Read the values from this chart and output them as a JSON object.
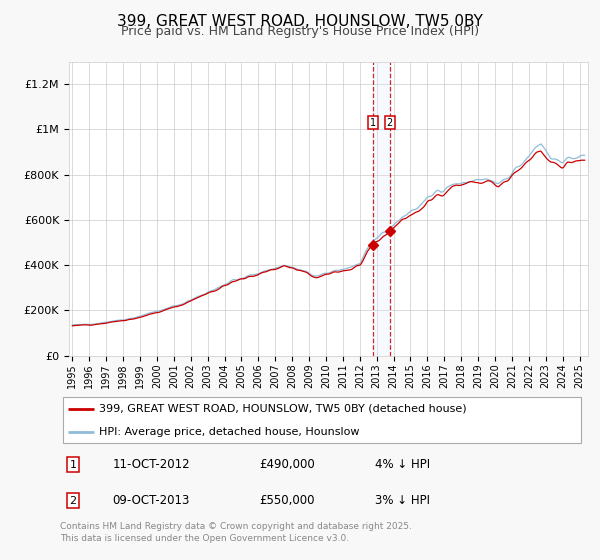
{
  "title": "399, GREAT WEST ROAD, HOUNSLOW, TW5 0BY",
  "subtitle": "Price paid vs. HM Land Registry's House Price Index (HPI)",
  "ylabel_ticks": [
    "£0",
    "£200K",
    "£400K",
    "£600K",
    "£800K",
    "£1M",
    "£1.2M"
  ],
  "ytick_values": [
    0,
    200000,
    400000,
    600000,
    800000,
    1000000,
    1200000
  ],
  "ylim": [
    0,
    1300000
  ],
  "xlim_start": 1994.8,
  "xlim_end": 2025.5,
  "purchase1_date": 2012.78,
  "purchase1_price": 490000,
  "purchase2_date": 2013.77,
  "purchase2_price": 550000,
  "line1_color": "#cc0000",
  "line2_color": "#90bcd8",
  "marker_color": "#cc0000",
  "highlight_color": "#ddeeff",
  "dashed_line_color": "#cc0000",
  "legend1_label": "399, GREAT WEST ROAD, HOUNSLOW, TW5 0BY (detached house)",
  "legend2_label": "HPI: Average price, detached house, Hounslow",
  "annotation1_date": "11-OCT-2012",
  "annotation1_price": "£490,000",
  "annotation1_hpi": "4% ↓ HPI",
  "annotation2_date": "09-OCT-2013",
  "annotation2_price": "£550,000",
  "annotation2_hpi": "3% ↓ HPI",
  "footer_text": "Contains HM Land Registry data © Crown copyright and database right 2025.\nThis data is licensed under the Open Government Licence v3.0.",
  "background_color": "#f8f8f8",
  "plot_bg_color": "#ffffff"
}
